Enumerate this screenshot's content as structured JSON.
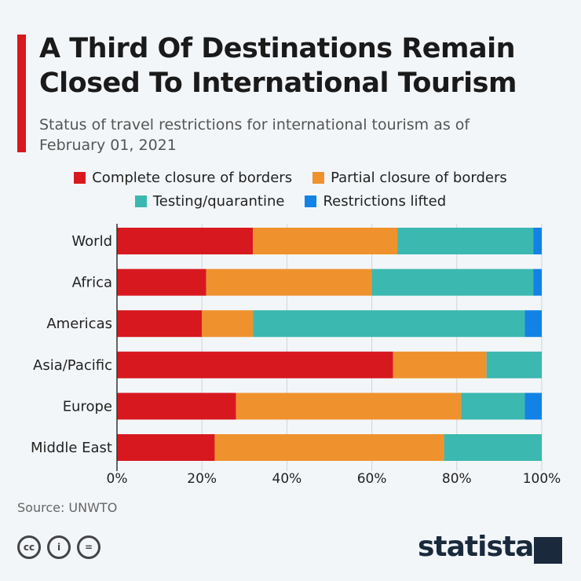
{
  "title": "A Third Of Destinations Remain Closed To International Tourism",
  "subtitle": "Status of travel restrictions for international tourism as of February 01, 2021",
  "source": "Source: UNWTO",
  "brand": "statista",
  "license_icons": [
    "cc-icon",
    "attribution-icon",
    "no-derivatives-icon"
  ],
  "chart_data": {
    "type": "bar",
    "orientation": "horizontal",
    "stacked": true,
    "categories": [
      "World",
      "Africa",
      "Americas",
      "Asia/Pacific",
      "Europe",
      "Middle East"
    ],
    "series": [
      {
        "name": "Complete closure of borders",
        "color": "#d7191f",
        "values": [
          32,
          21,
          20,
          65,
          28,
          23
        ]
      },
      {
        "name": "Partial closure of borders",
        "color": "#ef922e",
        "values": [
          34,
          39,
          12,
          22,
          53,
          54
        ]
      },
      {
        "name": "Testing/quarantine",
        "color": "#3bb8b0",
        "values": [
          32,
          38,
          64,
          13,
          15,
          23
        ]
      },
      {
        "name": "Restrictions lifted",
        "color": "#1282e6",
        "values": [
          2,
          2,
          4,
          0,
          4,
          0
        ]
      }
    ],
    "xlim": [
      0,
      100
    ],
    "xticks": [
      "0%",
      "20%",
      "40%",
      "60%",
      "80%",
      "100%"
    ],
    "grid": true,
    "legend": "top"
  }
}
